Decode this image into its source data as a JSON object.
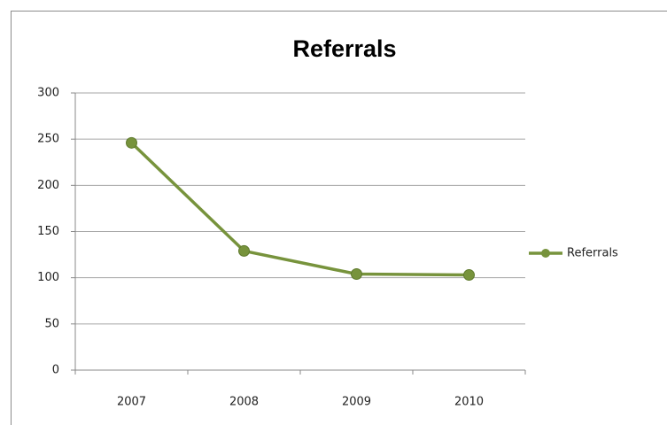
{
  "chart_data": {
    "type": "line",
    "title": "Referrals",
    "categories": [
      "2007",
      "2008",
      "2009",
      "2010"
    ],
    "series": [
      {
        "name": "Referrals",
        "color": "#77933c",
        "values": [
          246,
          129,
          104,
          103
        ]
      }
    ],
    "ylim": [
      0,
      300
    ],
    "yticks": [
      0,
      50,
      100,
      150,
      200,
      250,
      300
    ],
    "grid": true,
    "legend": "right"
  }
}
